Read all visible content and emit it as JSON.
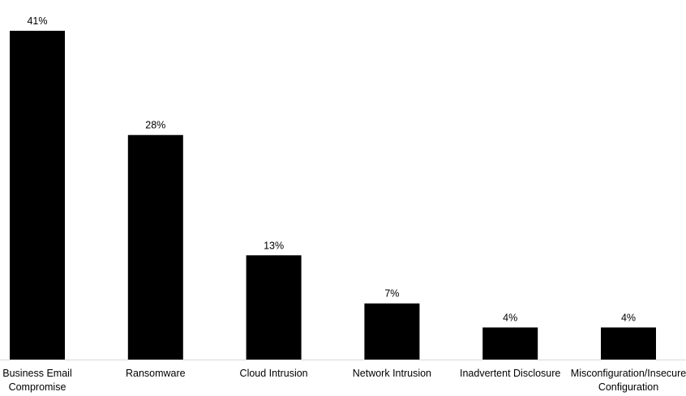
{
  "chart_data": {
    "type": "bar",
    "categories": [
      "Business Email Compromise",
      "Ransomware",
      "Cloud Intrusion",
      "Network Intrusion",
      "Inadvertent Disclosure",
      "Misconfiguration/Insecure Configuration"
    ],
    "values": [
      41,
      28,
      13,
      7,
      4,
      4
    ],
    "value_labels": [
      "41%",
      "28%",
      "13%",
      "7%",
      "4%",
      "4%"
    ],
    "color": "#000000"
  }
}
